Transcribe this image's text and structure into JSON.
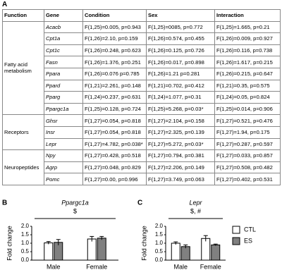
{
  "table": {
    "panel": "A",
    "header": [
      "Function",
      "Gene",
      "Condition",
      "Sex",
      "Interaction"
    ],
    "groups": [
      {
        "function": "Fatty acid metabolism",
        "rows": [
          [
            "Acacb",
            "F(1,25)=0.005, p=0.943",
            "F(1,25)=0085, p=0.772",
            "F(1,25)=1.665, p=0.21"
          ],
          [
            "Cpt1a",
            "F(1,26)=2.10, p=0.159",
            "F(1,26)=0.574, p=0.455",
            "F(1,26)=0.009, p=0.927"
          ],
          [
            "Cpt1c",
            "F(1,26)=0.248, p=0.623",
            "F(1,26)=0.125, p=0.726",
            "F(1,26)=0.116, p=0.738"
          ],
          [
            "Fasn",
            "F(1,26)=1.376, p=0.251",
            "F(1,26)=0.017, p=0.898",
            "F(1,26)=1.617, p=0.215"
          ],
          [
            "Ppara",
            "F(1,26)=0.076 p=0.785",
            "F(1,26)=1.21 p=0.281",
            "F(1,26)=0.215, p=0.647"
          ],
          [
            "Ppard",
            "F(1,21)=2.261, p=0.148",
            "F(1,21)=0.702, p=0.412",
            "F(1,21)=0.35, p=0.575"
          ],
          [
            "Pparg",
            "F(1,24)=0.237, p=0.631",
            "F(1,24)=1.077, p=0.31",
            "F(1,24)=0.05, p=0.824"
          ],
          [
            "Ppargc1a",
            "F(1,25)=0.128, p=0.724",
            "F(1,25)=5.268, p=0.03*",
            "F(1,25)=0.014, p=0.906"
          ]
        ]
      },
      {
        "function": "Receptors",
        "rows": [
          [
            "Ghsr",
            "F(1,27)=0.054, p=0.818",
            "F(1,27)=2.104, p=0.158",
            "F(1,27)=0.521, p=0.476"
          ],
          [
            "Insr",
            "F(1,27)=0.054, p=0.818",
            "F(1,27)=2.325, p=0.139",
            "F(1,27)=1.94, p=0.175"
          ],
          [
            "Lepr",
            "F(1,27)=4.782, p=0.038*",
            "F(1,27)=5.272, p=0.03*",
            "F(1,27)=0.287, p=0.597"
          ]
        ]
      },
      {
        "function": "Neuropeptides",
        "rows": [
          [
            "Npy",
            "F(1,27)=0.428, p=0.518",
            "F(1,27)=0.794, p=0.381",
            "F(1,27)=0.033, p=0.857"
          ],
          [
            "Agrp",
            "F(1,27)=0.048, p=0.829",
            "F(1,27)=2.206, p=0.149",
            "F(1,27)=0.508, p=0.482"
          ],
          [
            "Pomc",
            "F(1,27)=0.00, p=0.996",
            "F(1,27)=3.749, p=0.063",
            "F(1,27)=0.402, p=0.531"
          ]
        ]
      }
    ]
  },
  "chart_data": [
    {
      "type": "bar",
      "panel": "B",
      "title": "Ppargc1a",
      "ylabel": "Fold change",
      "annotation": "$",
      "categories": [
        "Male",
        "Female"
      ],
      "series": [
        {
          "name": "CTL",
          "color": "#ffffff",
          "values": [
            1.02,
            1.25
          ],
          "errors": [
            0.08,
            0.15
          ]
        },
        {
          "name": "ES",
          "color": "#808080",
          "values": [
            1.05,
            1.3
          ],
          "errors": [
            0.17,
            0.1
          ]
        }
      ],
      "ylim": [
        0,
        2
      ],
      "yticks": [
        {
          "value": 0,
          "label": "0.0"
        },
        0.5,
        {
          "value": 1,
          "label": "1.0"
        },
        1.5,
        {
          "value": 2,
          "label": "2.0"
        }
      ]
    },
    {
      "type": "bar",
      "panel": "C",
      "title": "Lepr",
      "ylabel": "Fold change",
      "annotation": "$, #",
      "categories": [
        "Male",
        "Female"
      ],
      "series": [
        {
          "name": "CTL",
          "color": "#ffffff",
          "values": [
            1.0,
            1.28
          ],
          "errors": [
            0.08,
            0.17
          ]
        },
        {
          "name": "ES",
          "color": "#808080",
          "values": [
            0.8,
            0.9
          ],
          "errors": [
            0.1,
            0.05
          ]
        }
      ],
      "ylim": [
        0,
        2
      ],
      "yticks": [
        {
          "value": 0,
          "label": "0.0"
        },
        0.5,
        {
          "value": 1,
          "label": "1.0"
        },
        1.5,
        {
          "value": 2,
          "label": "2.0"
        }
      ],
      "legend": "right"
    }
  ]
}
